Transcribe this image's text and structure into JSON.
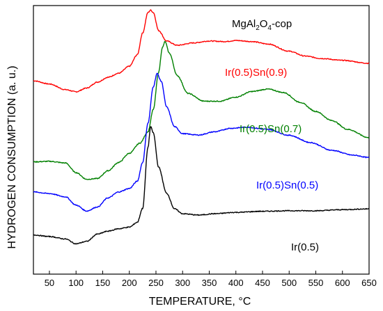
{
  "chart_data": {
    "type": "line",
    "title": "MgAl₂O₄-cop",
    "title_parts": {
      "before": "MgAl",
      "sub1": "2",
      "mid": "O",
      "sub2": "4",
      "after": "-cop"
    },
    "xlabel": "TEMPERATURE, °C",
    "ylabel": "HYDROGEN CONSUMPTION (a. u.)",
    "xlim": [
      20,
      650
    ],
    "ylim": [
      0,
      100
    ],
    "x_ticks": [
      50,
      100,
      150,
      200,
      250,
      300,
      350,
      400,
      450,
      500,
      550,
      600,
      650
    ],
    "y_ticks_shown": false,
    "grid": false,
    "legend": "labels next to curves",
    "series": [
      {
        "name": "Ir(0.5)Sn(0.9)",
        "color": "#ff0000",
        "points": [
          [
            20,
            72.0
          ],
          [
            50,
            70.8
          ],
          [
            80,
            68.7
          ],
          [
            100,
            67.9
          ],
          [
            120,
            69.3
          ],
          [
            140,
            71.5
          ],
          [
            160,
            73.3
          ],
          [
            180,
            74.8
          ],
          [
            200,
            77.4
          ],
          [
            215,
            81.7
          ],
          [
            225,
            89.8
          ],
          [
            235,
            97.4
          ],
          [
            240,
            98.3
          ],
          [
            245,
            97.4
          ],
          [
            255,
            90.7
          ],
          [
            270,
            86.8
          ],
          [
            290,
            85.2
          ],
          [
            320,
            86.1
          ],
          [
            350,
            86.8
          ],
          [
            380,
            86.6
          ],
          [
            400,
            87.0
          ],
          [
            430,
            86.6
          ],
          [
            460,
            85.7
          ],
          [
            500,
            83.0
          ],
          [
            530,
            81.2
          ],
          [
            560,
            80.3
          ],
          [
            600,
            79.6
          ],
          [
            650,
            78.5
          ]
        ]
      },
      {
        "name": "Ir(0.5)Sn(0.7)",
        "color": "#008000",
        "points": [
          [
            20,
            41.8
          ],
          [
            50,
            42.0
          ],
          [
            80,
            41.4
          ],
          [
            100,
            37.8
          ],
          [
            120,
            35.3
          ],
          [
            140,
            35.6
          ],
          [
            160,
            38.5
          ],
          [
            180,
            41.6
          ],
          [
            200,
            45.0
          ],
          [
            220,
            48.8
          ],
          [
            235,
            53.0
          ],
          [
            245,
            61.3
          ],
          [
            255,
            75.2
          ],
          [
            262,
            84.3
          ],
          [
            267,
            86.6
          ],
          [
            275,
            82.3
          ],
          [
            290,
            73.9
          ],
          [
            310,
            67.3
          ],
          [
            340,
            64.4
          ],
          [
            370,
            64.4
          ],
          [
            400,
            65.9
          ],
          [
            430,
            68.0
          ],
          [
            460,
            68.9
          ],
          [
            490,
            67.6
          ],
          [
            520,
            64.0
          ],
          [
            550,
            60.6
          ],
          [
            580,
            57.2
          ],
          [
            610,
            53.9
          ],
          [
            650,
            50.8
          ]
        ]
      },
      {
        "name": "Ir(0.5)Sn(0.5)",
        "color": "#0000ff",
        "points": [
          [
            20,
            30.6
          ],
          [
            50,
            30.0
          ],
          [
            80,
            28.8
          ],
          [
            100,
            25.7
          ],
          [
            120,
            23.5
          ],
          [
            140,
            25.0
          ],
          [
            160,
            28.4
          ],
          [
            180,
            30.6
          ],
          [
            200,
            31.9
          ],
          [
            215,
            34.6
          ],
          [
            225,
            41.6
          ],
          [
            235,
            56.2
          ],
          [
            245,
            69.8
          ],
          [
            252,
            74.7
          ],
          [
            260,
            71.8
          ],
          [
            270,
            62.2
          ],
          [
            285,
            54.9
          ],
          [
            300,
            52.3
          ],
          [
            330,
            51.8
          ],
          [
            360,
            53.0
          ],
          [
            390,
            54.3
          ],
          [
            420,
            54.7
          ],
          [
            460,
            53.9
          ],
          [
            500,
            51.7
          ],
          [
            540,
            49.0
          ],
          [
            580,
            46.1
          ],
          [
            620,
            44.3
          ],
          [
            650,
            43.4
          ]
        ]
      },
      {
        "name": "Ir(0.5)",
        "color": "#000000",
        "points": [
          [
            20,
            14.6
          ],
          [
            50,
            14.0
          ],
          [
            80,
            13.1
          ],
          [
            100,
            11.3
          ],
          [
            120,
            12.2
          ],
          [
            140,
            14.9
          ],
          [
            160,
            16.0
          ],
          [
            180,
            16.9
          ],
          [
            200,
            17.5
          ],
          [
            215,
            19.3
          ],
          [
            225,
            24.5
          ],
          [
            235,
            47.2
          ],
          [
            240,
            54.9
          ],
          [
            245,
            52.6
          ],
          [
            255,
            39.8
          ],
          [
            270,
            30.1
          ],
          [
            285,
            24.3
          ],
          [
            300,
            22.5
          ],
          [
            330,
            22.0
          ],
          [
            360,
            22.5
          ],
          [
            400,
            23.0
          ],
          [
            450,
            23.4
          ],
          [
            500,
            23.6
          ],
          [
            550,
            23.6
          ],
          [
            600,
            24.0
          ],
          [
            650,
            24.3
          ]
        ]
      }
    ]
  }
}
